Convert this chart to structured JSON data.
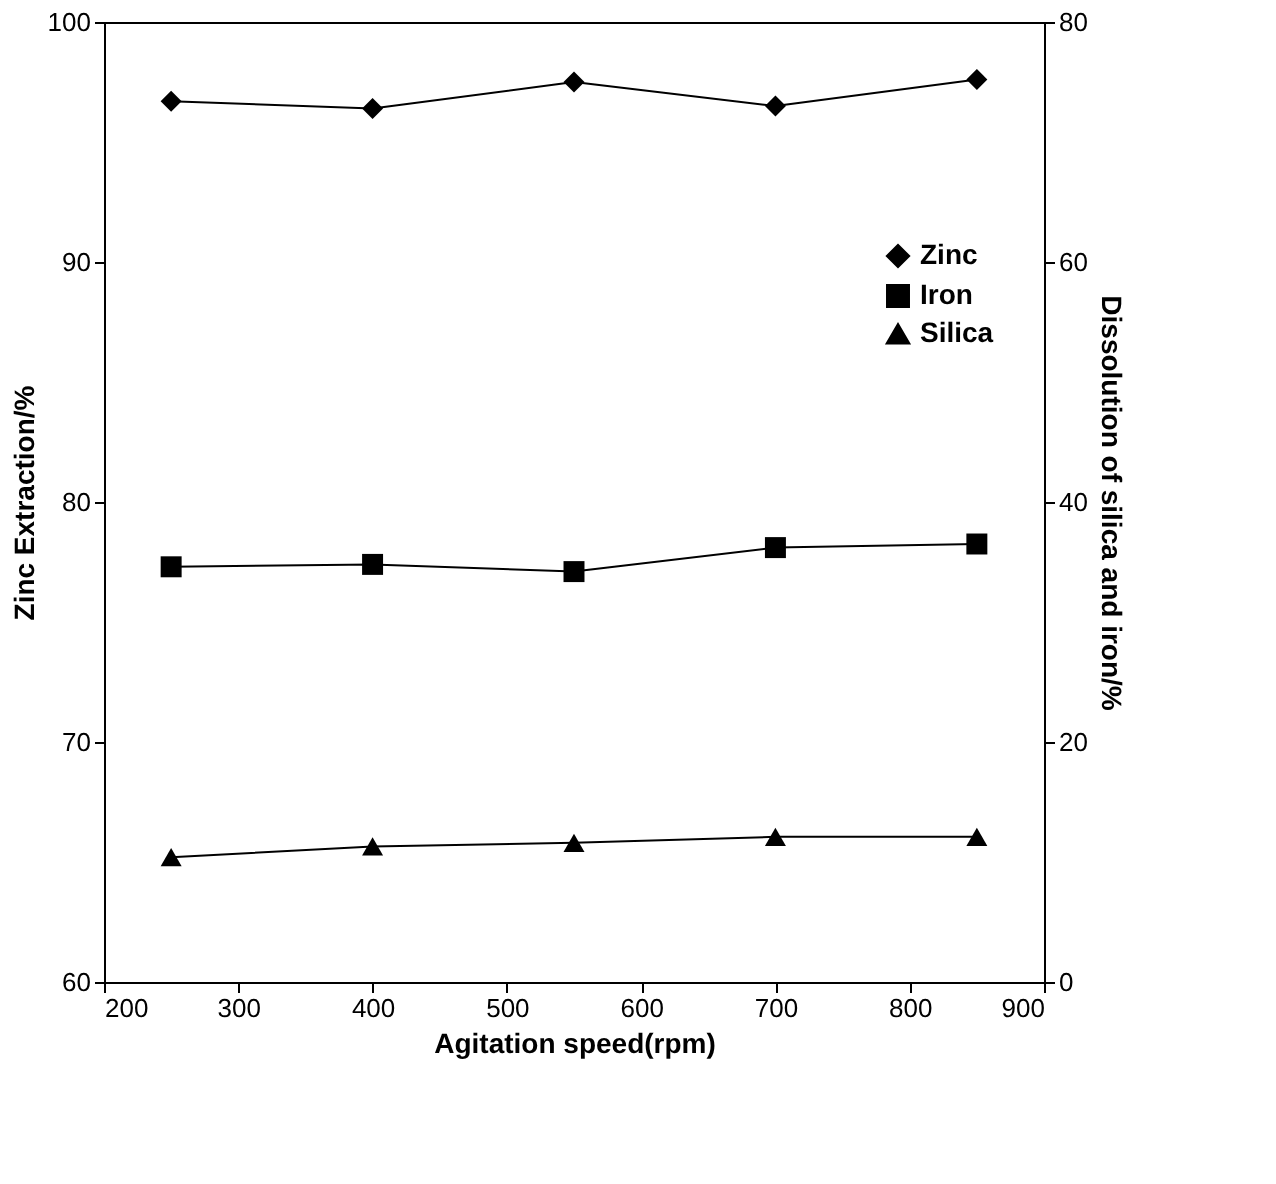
{
  "chart_data": {
    "type": "line",
    "xlabel": "Agitation speed(rpm)",
    "ylabel": "Zinc Extraction/%",
    "y2label": "Dissolution of silica and iron/%",
    "x": [
      250,
      400,
      550,
      700,
      850
    ],
    "series": [
      {
        "name": "Zinc",
        "color": "#000000",
        "marker": "diamond",
        "values": [
          96.7,
          96.4,
          97.5,
          96.5,
          97.6
        ]
      },
      {
        "name": "Iron",
        "color": "#000000",
        "marker": "square",
        "axis": "y2",
        "values": [
          34.6,
          34.8,
          34.2,
          36.2,
          36.5
        ]
      },
      {
        "name": "Silica",
        "color": "#000000",
        "marker": "triangle",
        "axis": "y2",
        "values": [
          10.4,
          11.3,
          11.6,
          12.1,
          12.1
        ]
      }
    ],
    "xlim": [
      200,
      900
    ],
    "xticks": [
      200,
      300,
      400,
      500,
      600,
      700,
      800,
      900
    ],
    "ylim": [
      60,
      100
    ],
    "yticks": [
      60,
      70,
      80,
      90,
      100
    ],
    "y2lim": [
      0,
      80
    ],
    "y2ticks": [
      0,
      20,
      40,
      60,
      80
    ],
    "legend": "top right",
    "grid": false,
    "line_style": "solid"
  }
}
